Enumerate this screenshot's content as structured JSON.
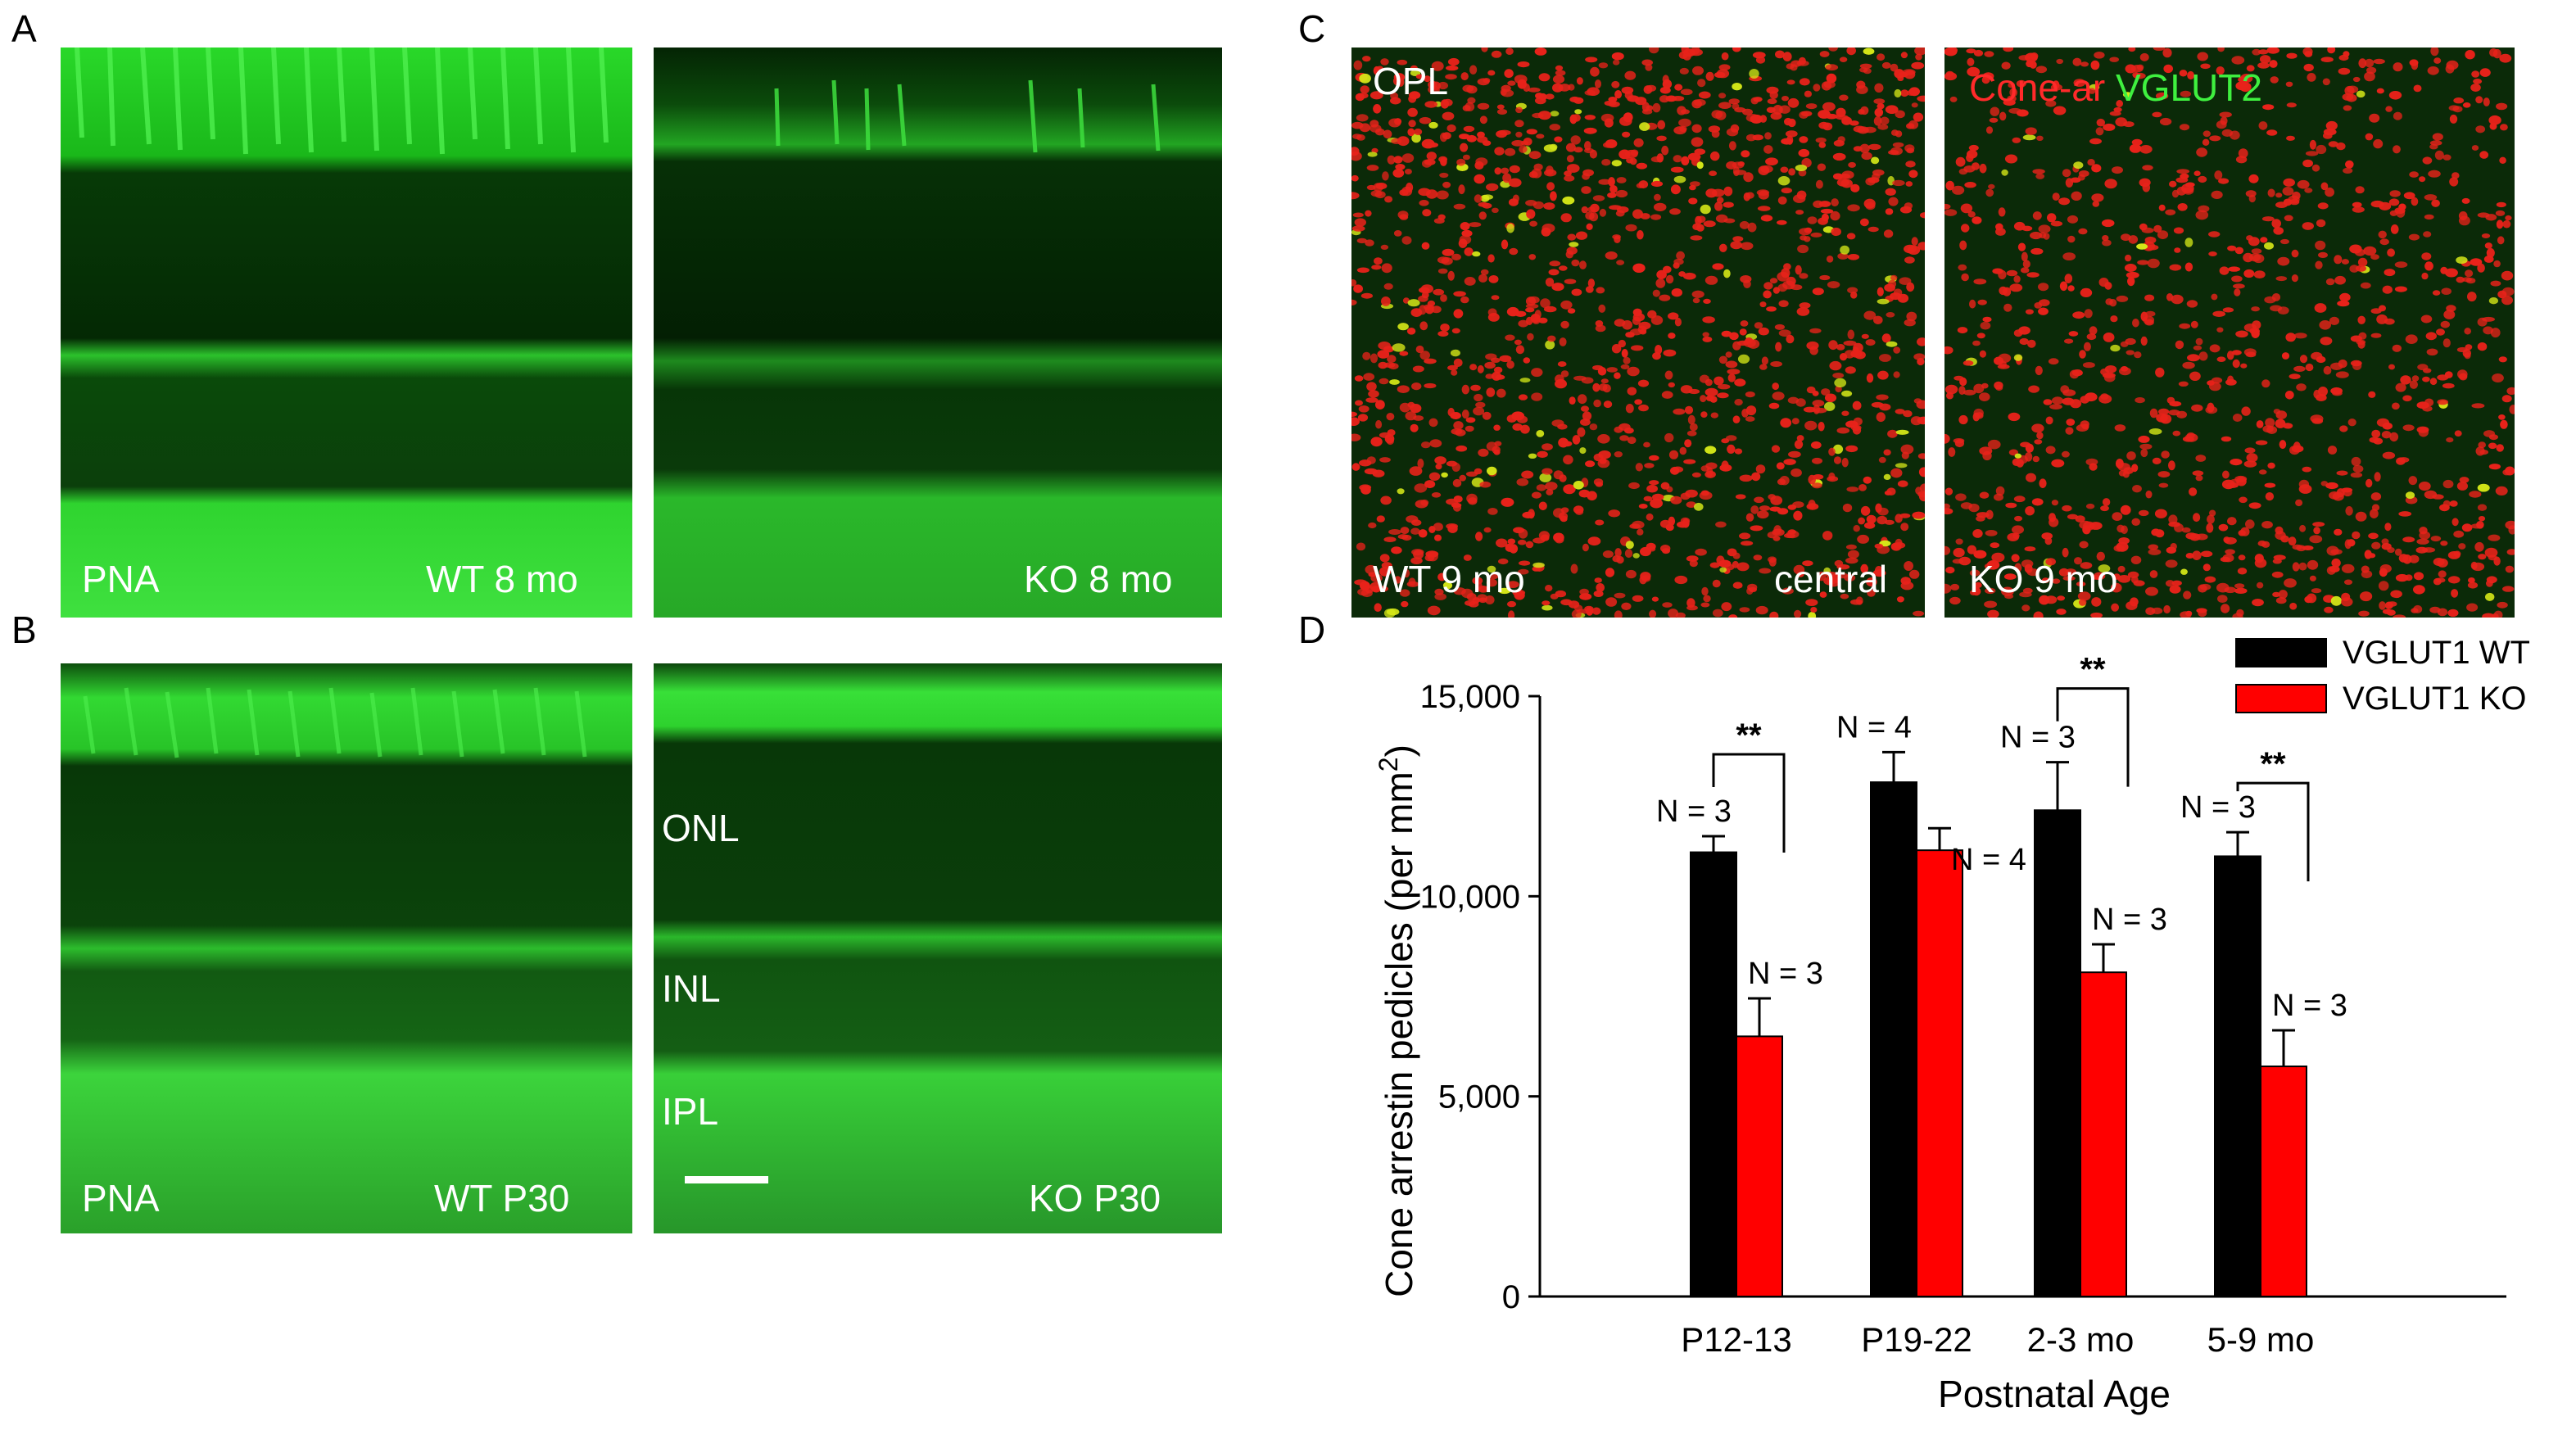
{
  "panels": {
    "A": {
      "letter": "A",
      "left_label": "PNA",
      "wt_label": "WT 8 mo",
      "ko_label": "KO 8 mo"
    },
    "B": {
      "letter": "B",
      "left_label": "PNA",
      "wt_label": "WT P30",
      "ko_label": "KO P30",
      "layers": [
        "ONL",
        "INL",
        "IPL"
      ]
    },
    "C": {
      "letter": "C",
      "wt_top_label": "OPL",
      "wt_bottom_label": "WT 9 mo",
      "wt_region_label": "central",
      "ko_legend_red": "Cone-ar",
      "ko_legend_green": "VGLUT2",
      "ko_bottom_label": "KO 9 mo"
    },
    "D": {
      "letter": "D"
    }
  },
  "colors": {
    "micro_green": "#1fd11f",
    "micro_dark": "#032303",
    "micro_red": "#e8221a",
    "micro_yellow": "#d6e818",
    "bar_wt": "#000000",
    "bar_ko": "#ff0000"
  },
  "chart_data": {
    "type": "bar",
    "categories": [
      "P12-13",
      "P19-22",
      "2-3 mo",
      "5-9 mo"
    ],
    "series": [
      {
        "name": "VGLUT1 WT",
        "values": [
          11100,
          12850,
          12150,
          11000
        ],
        "errors": [
          400,
          750,
          1200,
          600
        ],
        "n_labels": [
          "N = 3",
          "N = 4",
          "N = 3",
          "N = 3"
        ]
      },
      {
        "name": "VGLUT1 KO",
        "values": [
          6500,
          11150,
          8100,
          5750
        ],
        "errors": [
          950,
          550,
          700,
          900
        ],
        "n_labels": [
          "N = 3",
          "N = 4",
          "N = 3",
          "N = 3"
        ]
      }
    ],
    "significance": [
      {
        "category": "P12-13",
        "label": "**"
      },
      {
        "category": "2-3 mo",
        "label": "**"
      },
      {
        "category": "5-9 mo",
        "label": "**"
      }
    ],
    "ylim": [
      0,
      15000
    ],
    "yticks": [
      0,
      5000,
      10000,
      15000
    ],
    "ytick_labels": [
      "0",
      "5,000",
      "10,000",
      "15,000"
    ],
    "xlabel": "Postnatal Age",
    "ylabel": "Cone arrestin pedicles (per mm",
    "ylabel_sup": "2",
    "ylabel_close": ")",
    "legend_position": "top-right"
  }
}
